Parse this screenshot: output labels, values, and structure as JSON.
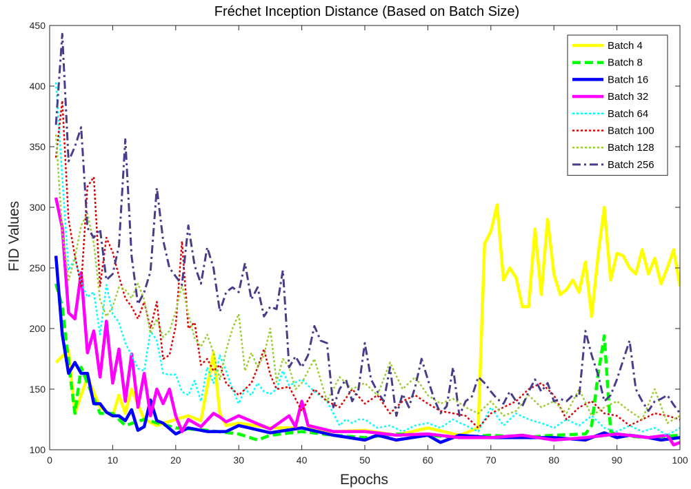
{
  "chart_data": {
    "type": "line",
    "title": "Fréchet Inception Distance (Based on Batch Size)",
    "xlabel": "Epochs",
    "ylabel": "FID Values",
    "xlim": [
      0,
      100
    ],
    "ylim": [
      100,
      450
    ],
    "xticks": [
      0,
      10,
      20,
      30,
      40,
      50,
      60,
      70,
      80,
      90,
      100
    ],
    "yticks": [
      100,
      150,
      200,
      250,
      300,
      350,
      400,
      450
    ],
    "grid": false,
    "legend_position": "top-right",
    "series": [
      {
        "name": "Batch 4",
        "color": "#FFFF00",
        "style": "solid",
        "width": 4.5,
        "x": [
          1,
          3,
          4,
          6,
          8,
          10,
          11,
          12,
          13,
          15,
          17,
          20,
          22,
          24,
          26,
          27,
          28,
          30,
          35,
          40,
          45,
          50,
          55,
          60,
          65,
          68,
          69,
          70,
          71,
          72,
          73,
          74,
          75,
          76,
          77,
          78,
          79,
          80,
          81,
          82,
          83,
          84,
          85,
          86,
          87,
          88,
          89,
          90,
          91,
          92,
          93,
          94,
          95,
          96,
          97,
          98,
          99,
          100
        ],
        "y": [
          172,
          182,
          130,
          160,
          135,
          128,
          145,
          130,
          150,
          125,
          120,
          125,
          128,
          124,
          180,
          130,
          120,
          122,
          118,
          118,
          115,
          116,
          112,
          118,
          112,
          118,
          270,
          280,
          302,
          240,
          250,
          242,
          218,
          218,
          282,
          228,
          290,
          245,
          228,
          232,
          240,
          230,
          255,
          210,
          260,
          300,
          240,
          262,
          260,
          250,
          245,
          265,
          245,
          258,
          237,
          250,
          265,
          235
        ]
      },
      {
        "name": "Batch 8",
        "color": "#00FF00",
        "style": "dash",
        "width": 4.5,
        "x": [
          1,
          2,
          3,
          4,
          5,
          6,
          8,
          10,
          12,
          15,
          20,
          25,
          30,
          33,
          35,
          40,
          45,
          50,
          55,
          60,
          65,
          70,
          75,
          80,
          85,
          86,
          87,
          88,
          89,
          90,
          95,
          100
        ],
        "y": [
          237,
          218,
          172,
          130,
          168,
          155,
          130,
          130,
          120,
          125,
          118,
          116,
          113,
          108,
          112,
          115,
          112,
          110,
          113,
          112,
          110,
          112,
          110,
          112,
          113,
          120,
          162,
          194,
          115,
          112,
          110,
          112
        ]
      },
      {
        "name": "Batch 16",
        "color": "#0000FF",
        "style": "solid",
        "width": 4.5,
        "x": [
          1,
          2,
          3,
          4,
          5,
          6,
          7,
          8,
          9,
          10,
          11,
          12,
          13,
          14,
          15,
          16,
          17,
          18,
          20,
          22,
          25,
          28,
          30,
          35,
          40,
          45,
          50,
          52,
          55,
          60,
          62,
          65,
          70,
          75,
          80,
          85,
          88,
          90,
          92,
          95,
          97,
          100
        ],
        "y": [
          260,
          195,
          163,
          172,
          163,
          163,
          138,
          138,
          131,
          128,
          128,
          124,
          133,
          116,
          119,
          141,
          124,
          122,
          113,
          118,
          115,
          115,
          120,
          114,
          118,
          112,
          108,
          112,
          108,
          112,
          106,
          112,
          110,
          110,
          110,
          108,
          114,
          110,
          112,
          110,
          108,
          110
        ]
      },
      {
        "name": "Batch 32",
        "color": "#FF00FF",
        "style": "solid",
        "width": 4.5,
        "x": [
          1,
          2,
          3,
          4,
          5,
          6,
          7,
          8,
          9,
          10,
          11,
          12,
          13,
          14,
          15,
          16,
          17,
          18,
          19,
          20,
          21,
          22,
          24,
          26,
          27,
          28,
          30,
          35,
          38,
          39,
          40,
          41,
          45,
          50,
          55,
          60,
          65,
          70,
          75,
          80,
          85,
          90,
          95,
          98,
          99,
          100
        ],
        "y": [
          308,
          283,
          213,
          208,
          246,
          180,
          198,
          160,
          206,
          155,
          183,
          140,
          179,
          135,
          163,
          128,
          150,
          138,
          150,
          128,
          115,
          125,
          119,
          130,
          127,
          123,
          128,
          117,
          128,
          119,
          140,
          120,
          115,
          115,
          112,
          113,
          110,
          110,
          112,
          108,
          110,
          113,
          110,
          112,
          104,
          106
        ]
      },
      {
        "name": "Batch 64",
        "color": "#00FFFF",
        "style": "dot",
        "width": 2.5,
        "x": [
          1,
          2,
          3,
          4,
          5,
          6,
          7,
          8,
          9,
          10,
          11,
          12,
          13,
          14,
          15,
          16,
          17,
          18,
          19,
          20,
          21,
          22,
          23,
          24,
          25,
          26,
          27,
          28,
          29,
          30,
          31,
          32,
          33,
          34,
          35,
          36,
          37,
          38,
          40,
          42,
          44,
          45,
          46,
          47,
          48,
          49,
          50,
          52,
          54,
          56,
          58,
          60,
          62,
          64,
          66,
          68,
          70,
          72,
          74,
          76,
          78,
          80,
          82,
          84,
          86,
          88,
          90,
          92,
          94,
          96,
          98,
          100
        ],
        "y": [
          403,
          325,
          248,
          258,
          238,
          226,
          230,
          195,
          236,
          212,
          205,
          188,
          178,
          167,
          165,
          198,
          190,
          163,
          162,
          162,
          148,
          145,
          157,
          140,
          168,
          155,
          178,
          165,
          150,
          138,
          150,
          145,
          155,
          148,
          146,
          150,
          165,
          153,
          158,
          148,
          140,
          130,
          120,
          125,
          122,
          125,
          125,
          118,
          120,
          115,
          120,
          122,
          118,
          125,
          120,
          115,
          135,
          120,
          130,
          125,
          122,
          118,
          125,
          120,
          128,
          118,
          115,
          120,
          115,
          118,
          112,
          118
        ]
      },
      {
        "name": "Batch 100",
        "color": "#DD0000",
        "style": "dot",
        "width": 2.5,
        "x": [
          1,
          2,
          3,
          4,
          5,
          6,
          7,
          8,
          9,
          10,
          11,
          12,
          13,
          14,
          15,
          16,
          17,
          18,
          19,
          20,
          21,
          22,
          23,
          24,
          25,
          26,
          27,
          28,
          30,
          32,
          33,
          34,
          35,
          36,
          38,
          40,
          42,
          44,
          46,
          48,
          50,
          52,
          54,
          56,
          58,
          60,
          62,
          64,
          66,
          68,
          70,
          72,
          74,
          76,
          78,
          80,
          82,
          84,
          86,
          88,
          90,
          92,
          94,
          96,
          98,
          100
        ],
        "y": [
          341,
          388,
          290,
          260,
          235,
          317,
          325,
          235,
          275,
          263,
          243,
          225,
          218,
          208,
          222,
          200,
          222,
          175,
          178,
          202,
          272,
          200,
          205,
          170,
          175,
          165,
          170,
          155,
          145,
          155,
          168,
          183,
          162,
          150,
          152,
          132,
          150,
          140,
          135,
          150,
          138,
          145,
          130,
          140,
          145,
          138,
          132,
          130,
          128,
          118,
          130,
          135,
          140,
          150,
          155,
          145,
          125,
          135,
          140,
          130,
          128,
          120,
          125,
          130,
          128,
          125
        ]
      },
      {
        "name": "Batch 128",
        "color": "#9ACD32",
        "style": "dot",
        "width": 2.5,
        "x": [
          1,
          2,
          3,
          4,
          5,
          6,
          7,
          8,
          9,
          10,
          11,
          12,
          13,
          14,
          15,
          16,
          17,
          18,
          19,
          20,
          21,
          22,
          23,
          24,
          25,
          26,
          27,
          28,
          29,
          30,
          31,
          32,
          33,
          34,
          35,
          36,
          37,
          38,
          39,
          40,
          42,
          44,
          46,
          48,
          50,
          52,
          54,
          56,
          58,
          60,
          62,
          64,
          66,
          68,
          70,
          72,
          74,
          76,
          78,
          80,
          82,
          84,
          86,
          88,
          90,
          92,
          94,
          96,
          98,
          100
        ],
        "y": [
          360,
          280,
          240,
          258,
          285,
          295,
          270,
          224,
          210,
          218,
          234,
          232,
          225,
          237,
          224,
          196,
          208,
          193,
          198,
          214,
          236,
          212,
          192,
          185,
          195,
          180,
          158,
          182,
          200,
          212,
          165,
          180,
          168,
          178,
          200,
          156,
          175,
          168,
          150,
          155,
          175,
          140,
          160,
          150,
          155,
          145,
          172,
          150,
          160,
          145,
          138,
          142,
          135,
          130,
          140,
          128,
          132,
          145,
          135,
          140,
          130,
          150,
          128,
          135,
          140,
          132,
          125,
          150,
          122,
          128
        ]
      },
      {
        "name": "Batch 256",
        "color": "#483D8B",
        "style": "dashdot",
        "width": 3,
        "x": [
          1,
          2,
          3,
          4,
          5,
          6,
          7,
          8,
          9,
          10,
          11,
          12,
          13,
          14,
          15,
          16,
          17,
          18,
          19,
          20,
          21,
          22,
          23,
          24,
          25,
          26,
          27,
          28,
          29,
          30,
          31,
          32,
          33,
          34,
          35,
          36,
          37,
          38,
          39,
          40,
          41,
          42,
          43,
          44,
          45,
          46,
          47,
          48,
          49,
          50,
          51,
          52,
          53,
          54,
          55,
          56,
          57,
          58,
          59,
          60,
          61,
          62,
          63,
          64,
          65,
          66,
          67,
          68,
          69,
          70,
          71,
          72,
          73,
          74,
          75,
          76,
          77,
          78,
          79,
          80,
          81,
          82,
          83,
          84,
          85,
          86,
          87,
          88,
          89,
          90,
          91,
          92,
          93,
          94,
          95,
          96,
          97,
          98,
          99,
          100
        ],
        "y": [
          368,
          443,
          338,
          350,
          366,
          283,
          275,
          282,
          240,
          245,
          268,
          356,
          260,
          220,
          230,
          247,
          316,
          273,
          250,
          243,
          236,
          285,
          252,
          237,
          267,
          250,
          214,
          230,
          234,
          230,
          254,
          224,
          234,
          210,
          218,
          216,
          248,
          168,
          177,
          168,
          178,
          202,
          190,
          188,
          135,
          150,
          158,
          140,
          150,
          188,
          158,
          148,
          140,
          168,
          128,
          146,
          135,
          152,
          175,
          158,
          142,
          130,
          136,
          168,
          128,
          140,
          144,
          160,
          155,
          148,
          142,
          138,
          148,
          140,
          136,
          148,
          158,
          148,
          155,
          140,
          142,
          140,
          145,
          144,
          198,
          178,
          162,
          140,
          145,
          158,
          174,
          190,
          150,
          140,
          132,
          140,
          142,
          145,
          137,
          130
        ]
      }
    ]
  }
}
